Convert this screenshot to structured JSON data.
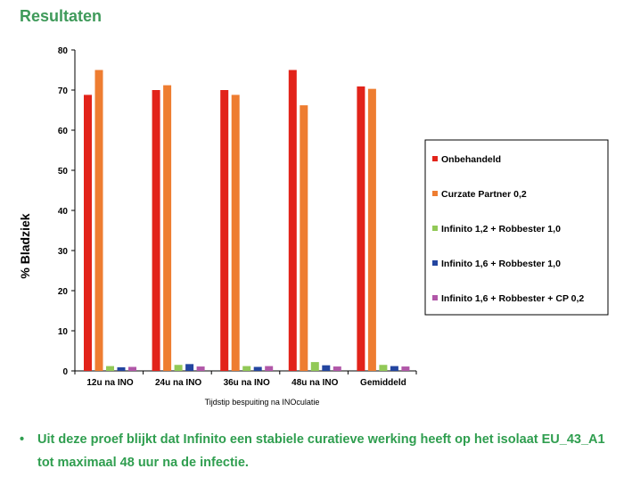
{
  "page": {
    "title": "Resultaten",
    "bullet_symbol": "•",
    "bullet_text": "Uit deze proef blijkt dat Infinito een stabiele curatieve werking heeft op het isolaat EU_43_A1 tot maximaal 48 uur na de infectie."
  },
  "chart_data": {
    "type": "bar",
    "title": "",
    "xlabel": "Tijdstip bespuiting na INOculatie",
    "ylabel": "% Bladziek",
    "ylim": [
      0,
      80
    ],
    "yticks": [
      0,
      10,
      20,
      30,
      40,
      50,
      60,
      70,
      80
    ],
    "categories": [
      "12u na INO",
      "24u na INO",
      "36u na INO",
      "48u na INO",
      "Gemiddeld"
    ],
    "series": [
      {
        "name": "Onbehandeld",
        "color": "#e2231a",
        "values": [
          68.8,
          70.0,
          70.0,
          75.0,
          70.9
        ]
      },
      {
        "name": "Curzate Partner 0,2",
        "color": "#ee7d31",
        "values": [
          75.0,
          71.2,
          68.8,
          66.2,
          70.3
        ]
      },
      {
        "name": "Infinito 1,2 + Robbester 1,0",
        "color": "#92c957",
        "values": [
          1.2,
          1.5,
          1.2,
          2.2,
          1.5
        ]
      },
      {
        "name": "Infinito 1,6 + Robbester 1,0",
        "color": "#2345a0",
        "values": [
          0.9,
          1.7,
          1.0,
          1.4,
          1.2
        ]
      },
      {
        "name": "Infinito 1,6 + Robbester + CP 0,2",
        "color": "#b157a8",
        "values": [
          1.0,
          1.1,
          1.2,
          1.1,
          1.1
        ]
      }
    ],
    "legend_position": "right",
    "grid": false
  }
}
